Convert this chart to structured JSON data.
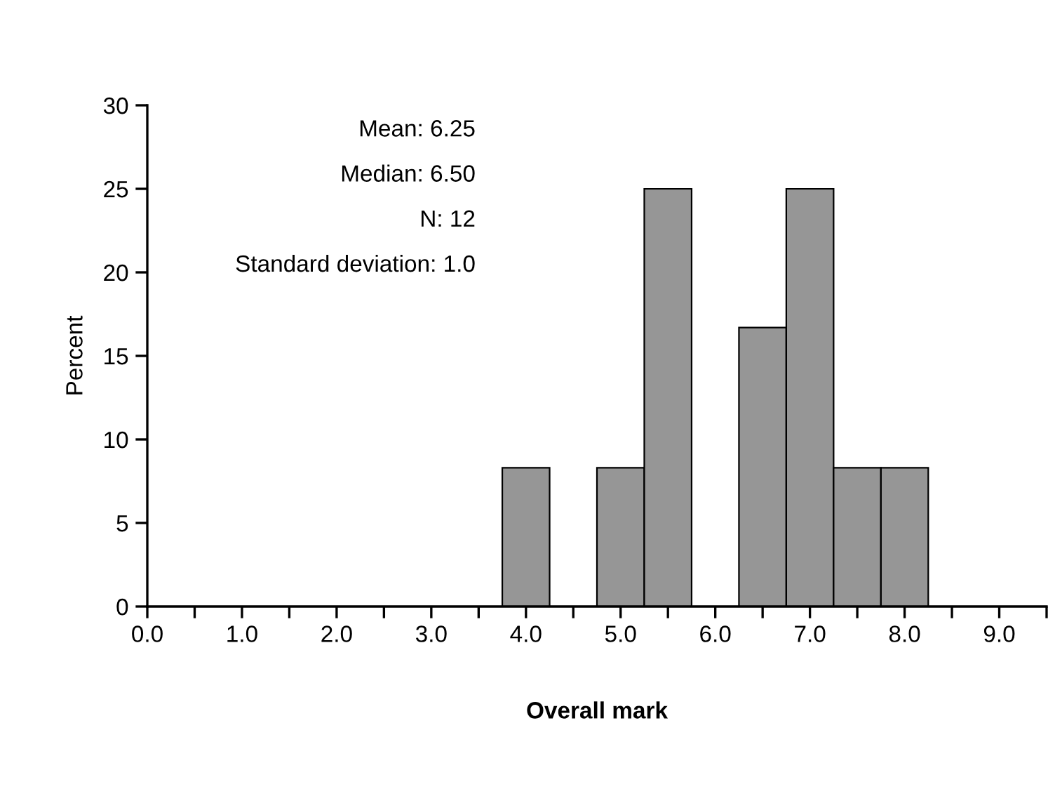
{
  "chart_data": {
    "type": "histogram",
    "xlabel": "Overall mark",
    "ylabel": "Percent",
    "bins": [
      3.75,
      4.25,
      4.75,
      5.25,
      5.75,
      6.25,
      6.75,
      7.25,
      7.75,
      8.25
    ],
    "values": [
      8.3,
      0,
      8.3,
      25,
      0,
      16.7,
      25,
      8.3,
      8.3
    ],
    "color": "#969696",
    "xlim": [
      0,
      9.5
    ],
    "xticks": [
      {
        "value": 0,
        "label": "0.0"
      },
      {
        "value": 0.5,
        "label": null
      },
      {
        "value": 1,
        "label": "1.0"
      },
      {
        "value": 1.5,
        "label": null
      },
      {
        "value": 2,
        "label": "2.0"
      },
      {
        "value": 2.5,
        "label": null
      },
      {
        "value": 3,
        "label": "3.0"
      },
      {
        "value": 3.5,
        "label": null
      },
      {
        "value": 4,
        "label": "4.0"
      },
      {
        "value": 4.5,
        "label": null
      },
      {
        "value": 5,
        "label": "5.0"
      },
      {
        "value": 5.5,
        "label": null
      },
      {
        "value": 6,
        "label": "6.0"
      },
      {
        "value": 6.5,
        "label": null
      },
      {
        "value": 7,
        "label": "7.0"
      },
      {
        "value": 7.5,
        "label": null
      },
      {
        "value": 8,
        "label": "8.0"
      },
      {
        "value": 8.5,
        "label": null
      },
      {
        "value": 9,
        "label": "9.0"
      },
      {
        "value": 9.5,
        "label": null
      }
    ],
    "ylim": [
      0,
      30
    ],
    "yticks": [
      0,
      5,
      10,
      15,
      20,
      25,
      30
    ],
    "grid": false,
    "annotations": [
      "Mean: 6.25",
      "Median: 6.50",
      "N: 12",
      "Standard deviation: 1.0"
    ]
  }
}
